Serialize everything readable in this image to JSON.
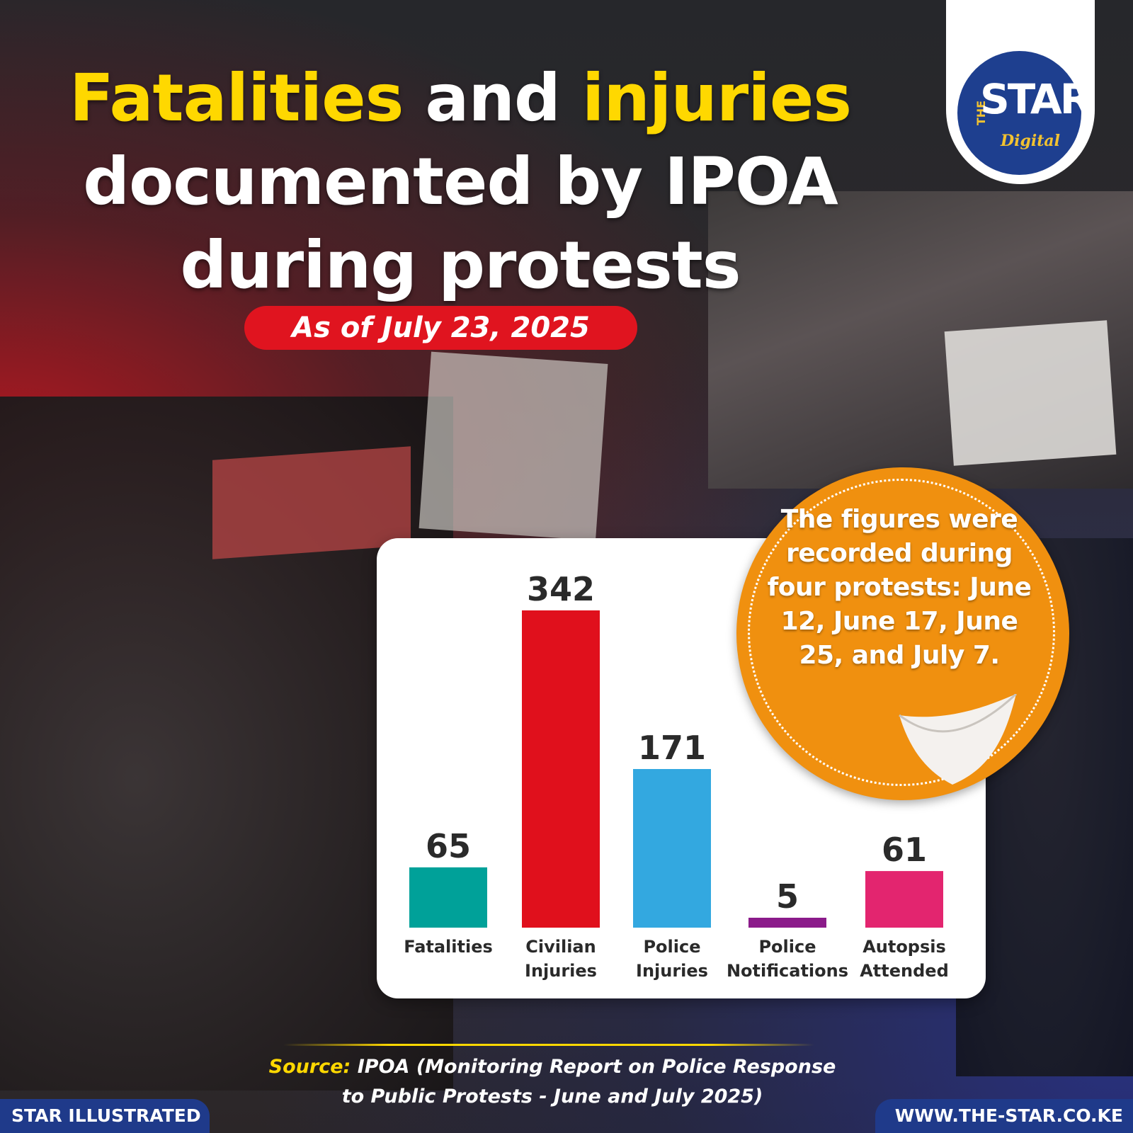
{
  "title": {
    "word1": "Fatalities",
    "word2": "and",
    "word3": "injuries",
    "line2": "documented by IPOA",
    "line3": "during protests"
  },
  "date_label": "As of July 23, 2025",
  "logo": {
    "the": "THE",
    "star": "STAR",
    "digital": "Digital"
  },
  "note": "The figures were recorded during four protests: June 12, June 17, June 25, and July 7.",
  "source": {
    "label": "Source:",
    "line1": "IPOA (Monitoring Report on Police Response",
    "line2": "to Public Protests - June and July 2025)"
  },
  "footer": {
    "left": "STAR ILLUSTRATED",
    "right": "WWW.THE-STAR.CO.KE"
  },
  "chart_data": {
    "type": "bar",
    "categories": [
      [
        "Fatalities"
      ],
      [
        "Civilian",
        "Injuries"
      ],
      [
        "Police",
        "Injuries"
      ],
      [
        "Police",
        "Notifications"
      ],
      [
        "Autopsis",
        "Attended"
      ]
    ],
    "values": [
      65,
      342,
      171,
      5,
      61
    ],
    "colors": [
      "#00a199",
      "#e0101c",
      "#33a8e0",
      "#8b1b8a",
      "#e3256f"
    ],
    "ylim": [
      0,
      342
    ]
  }
}
